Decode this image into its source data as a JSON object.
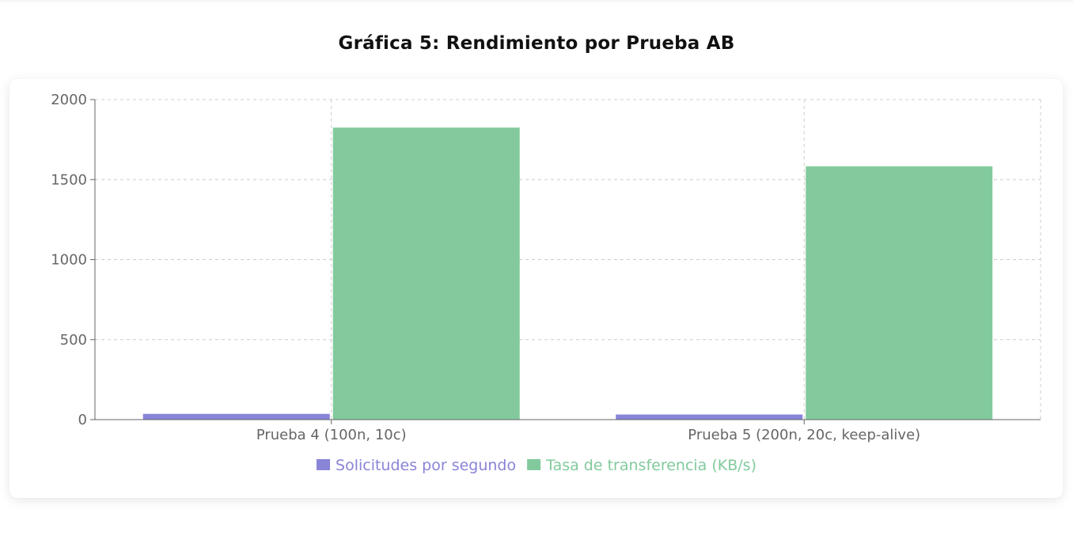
{
  "chart_title": "Gráfica 5: Rendimiento por Prueba AB",
  "colors": {
    "series_1": "#8884d8",
    "series_2": "#82ca9d",
    "grid": "#cccccc",
    "axis": "#666666"
  },
  "chart_data": {
    "type": "bar",
    "title": "Gráfica 5: Rendimiento por Prueba AB",
    "categories": [
      "Prueba 4 (100n, 10c)",
      "Prueba 5 (200n, 20c, keep-alive)"
    ],
    "series": [
      {
        "name": "Solicitudes por segundo",
        "values": [
          36,
          32
        ]
      },
      {
        "name": "Tasa de transferencia (KB/s)",
        "values": [
          1825,
          1583
        ]
      }
    ],
    "xlabel": "",
    "ylabel": "",
    "ylim": [
      0,
      2000
    ],
    "yticks": [
      "0",
      "500",
      "1000",
      "1500",
      "2000"
    ],
    "grid": true,
    "legend_position": "bottom-center"
  }
}
